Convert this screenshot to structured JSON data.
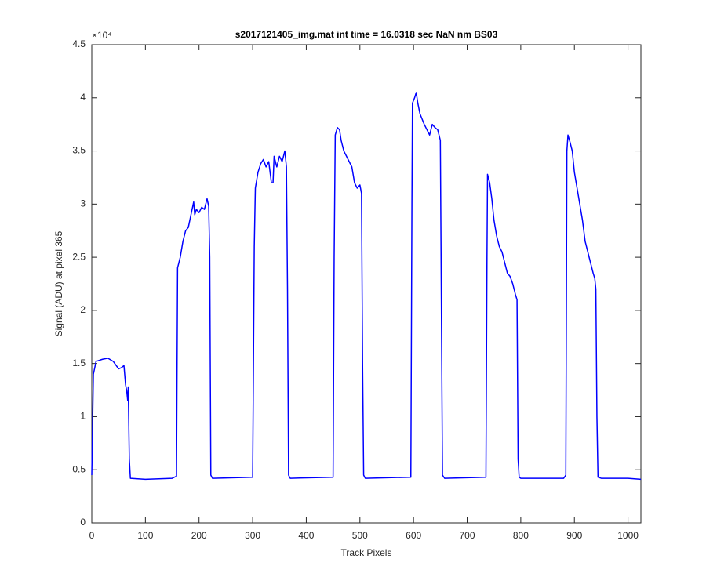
{
  "chart_data": {
    "type": "line",
    "title": "s2017121405_img.mat int time = 16.0318 sec  NaN nm BS03",
    "x_label": "Track Pixels",
    "y_label": "Signal (ADU) at pixel 365",
    "y_exponent": "×10⁴",
    "xlim": [
      0,
      1024
    ],
    "ylim": [
      0,
      4.5
    ],
    "xticks": [
      0,
      100,
      200,
      300,
      400,
      500,
      600,
      700,
      800,
      900,
      1000
    ],
    "yticks": [
      0,
      0.5,
      1,
      1.5,
      2,
      2.5,
      3,
      3.5,
      4,
      4.5
    ],
    "grid": false,
    "x": [
      0,
      3,
      8,
      20,
      30,
      40,
      50,
      55,
      60,
      63,
      65,
      67,
      68,
      70,
      72,
      100,
      150,
      158,
      160,
      165,
      170,
      175,
      180,
      185,
      190,
      192,
      195,
      200,
      205,
      210,
      215,
      218,
      220,
      222,
      225,
      300,
      303,
      305,
      310,
      315,
      320,
      325,
      330,
      335,
      338,
      340,
      345,
      350,
      355,
      360,
      363,
      365,
      367,
      370,
      450,
      452,
      454,
      458,
      462,
      465,
      470,
      475,
      480,
      485,
      490,
      495,
      500,
      503,
      505,
      507,
      510,
      595,
      597,
      598,
      602,
      605,
      608,
      612,
      616,
      620,
      625,
      630,
      635,
      640,
      645,
      650,
      652,
      654,
      658,
      735,
      737,
      738,
      742,
      746,
      750,
      755,
      760,
      765,
      770,
      775,
      780,
      785,
      790,
      793,
      795,
      797,
      800,
      880,
      884,
      886,
      888,
      892,
      896,
      900,
      905,
      910,
      915,
      920,
      925,
      930,
      935,
      938,
      940,
      942,
      944,
      950,
      1000,
      1024
    ],
    "series": [
      {
        "name": "Signal",
        "color": "#0000ff",
        "values": [
          0.45,
          1.4,
          1.52,
          1.54,
          1.55,
          1.52,
          1.45,
          1.46,
          1.48,
          1.3,
          1.25,
          1.15,
          1.28,
          0.6,
          0.42,
          0.41,
          0.42,
          0.44,
          2.4,
          2.5,
          2.65,
          2.75,
          2.78,
          2.9,
          3.02,
          2.9,
          2.95,
          2.92,
          2.97,
          2.95,
          3.05,
          2.98,
          2.5,
          0.45,
          0.42,
          0.43,
          2.6,
          3.15,
          3.3,
          3.38,
          3.42,
          3.35,
          3.4,
          3.2,
          3.2,
          3.45,
          3.35,
          3.45,
          3.4,
          3.5,
          3.35,
          2.2,
          0.45,
          0.42,
          0.43,
          2.5,
          3.65,
          3.72,
          3.7,
          3.6,
          3.5,
          3.45,
          3.4,
          3.35,
          3.2,
          3.15,
          3.18,
          3.1,
          1.5,
          0.45,
          0.42,
          0.43,
          3.0,
          3.95,
          4.0,
          4.05,
          3.95,
          3.85,
          3.8,
          3.75,
          3.7,
          3.65,
          3.75,
          3.72,
          3.7,
          3.6,
          2.0,
          0.45,
          0.42,
          0.43,
          2.5,
          3.28,
          3.2,
          3.05,
          2.85,
          2.7,
          2.6,
          2.55,
          2.45,
          2.35,
          2.32,
          2.25,
          2.15,
          2.1,
          0.6,
          0.43,
          0.42,
          0.42,
          0.45,
          3.5,
          3.65,
          3.58,
          3.5,
          3.3,
          3.15,
          3.0,
          2.85,
          2.65,
          2.55,
          2.45,
          2.35,
          2.3,
          2.2,
          1.0,
          0.43,
          0.42,
          0.42,
          0.41
        ]
      }
    ]
  }
}
